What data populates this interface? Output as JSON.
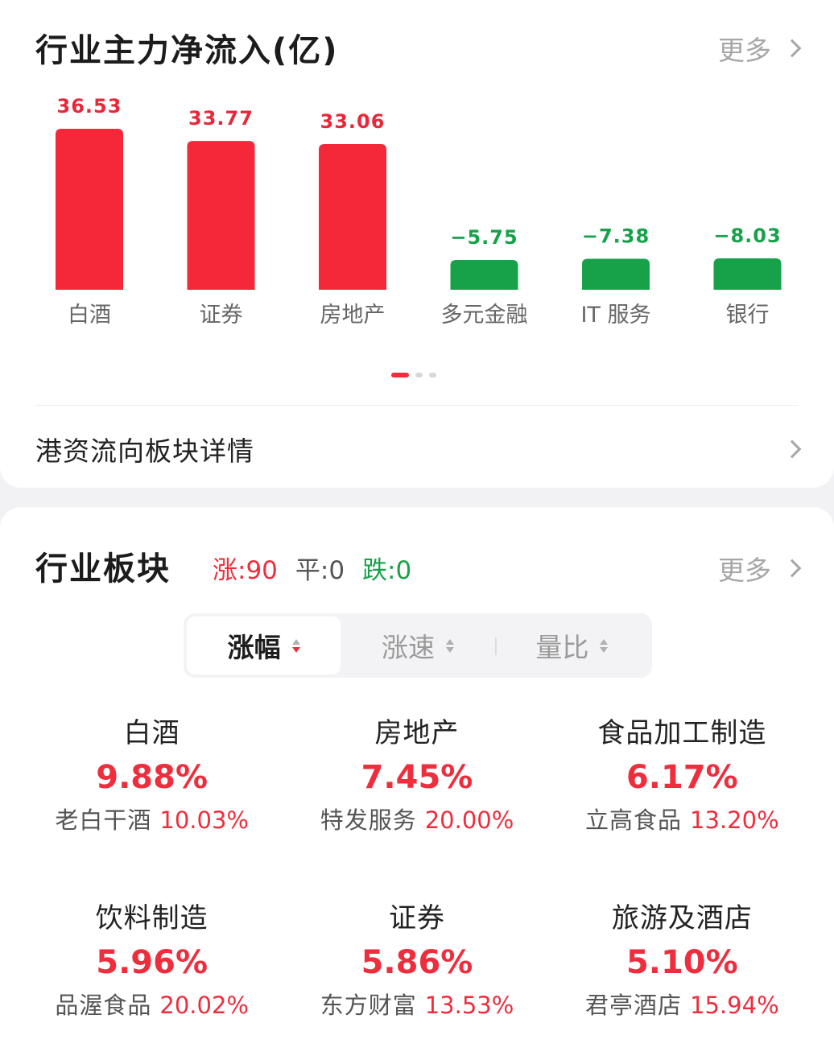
{
  "flow": {
    "title": "行业主力净流入(亿)",
    "more_label": "更多",
    "detail_label": "港资流向板块详情",
    "colors": {
      "positive": "#f5283a",
      "negative": "#17a24a"
    }
  },
  "chart_data": {
    "type": "bar",
    "categories": [
      "白酒",
      "证券",
      "房地产",
      "多元金融",
      "IT服务",
      "银行"
    ],
    "values": [
      36.53,
      33.77,
      33.06,
      -5.75,
      -7.38,
      -8.03
    ],
    "value_labels": [
      "36.53",
      "33.77",
      "33.06",
      "−5.75",
      "−7.38",
      "−8.03"
    ],
    "category_labels": [
      "白酒",
      "证券",
      "房地产",
      "多元金融",
      "IT 服务",
      "银行"
    ],
    "title": "",
    "xlabel": "",
    "ylabel": "",
    "grid": false
  },
  "pager": {
    "pages": 3,
    "active": 0
  },
  "sector": {
    "title": "行业板块",
    "up_label": "涨:90",
    "flat_label": "平:0",
    "down_label": "跌:0",
    "more_label": "更多",
    "tabs": [
      {
        "label": "涨幅"
      },
      {
        "label": "涨速"
      },
      {
        "label": "量比"
      }
    ],
    "active_tab": 0,
    "items": [
      {
        "name": "白酒",
        "change": "9.88%",
        "leader": "老白干酒",
        "leader_change": "10.03%"
      },
      {
        "name": "房地产",
        "change": "7.45%",
        "leader": "特发服务",
        "leader_change": "20.00%"
      },
      {
        "name": "食品加工制造",
        "change": "6.17%",
        "leader": "立高食品",
        "leader_change": "13.20%"
      },
      {
        "name": "饮料制造",
        "change": "5.96%",
        "leader": "品渥食品",
        "leader_change": "20.02%"
      },
      {
        "name": "证券",
        "change": "5.86%",
        "leader": "东方财富",
        "leader_change": "13.53%"
      },
      {
        "name": "旅游及酒店",
        "change": "5.10%",
        "leader": "君亭酒店",
        "leader_change": "15.94%"
      }
    ]
  }
}
